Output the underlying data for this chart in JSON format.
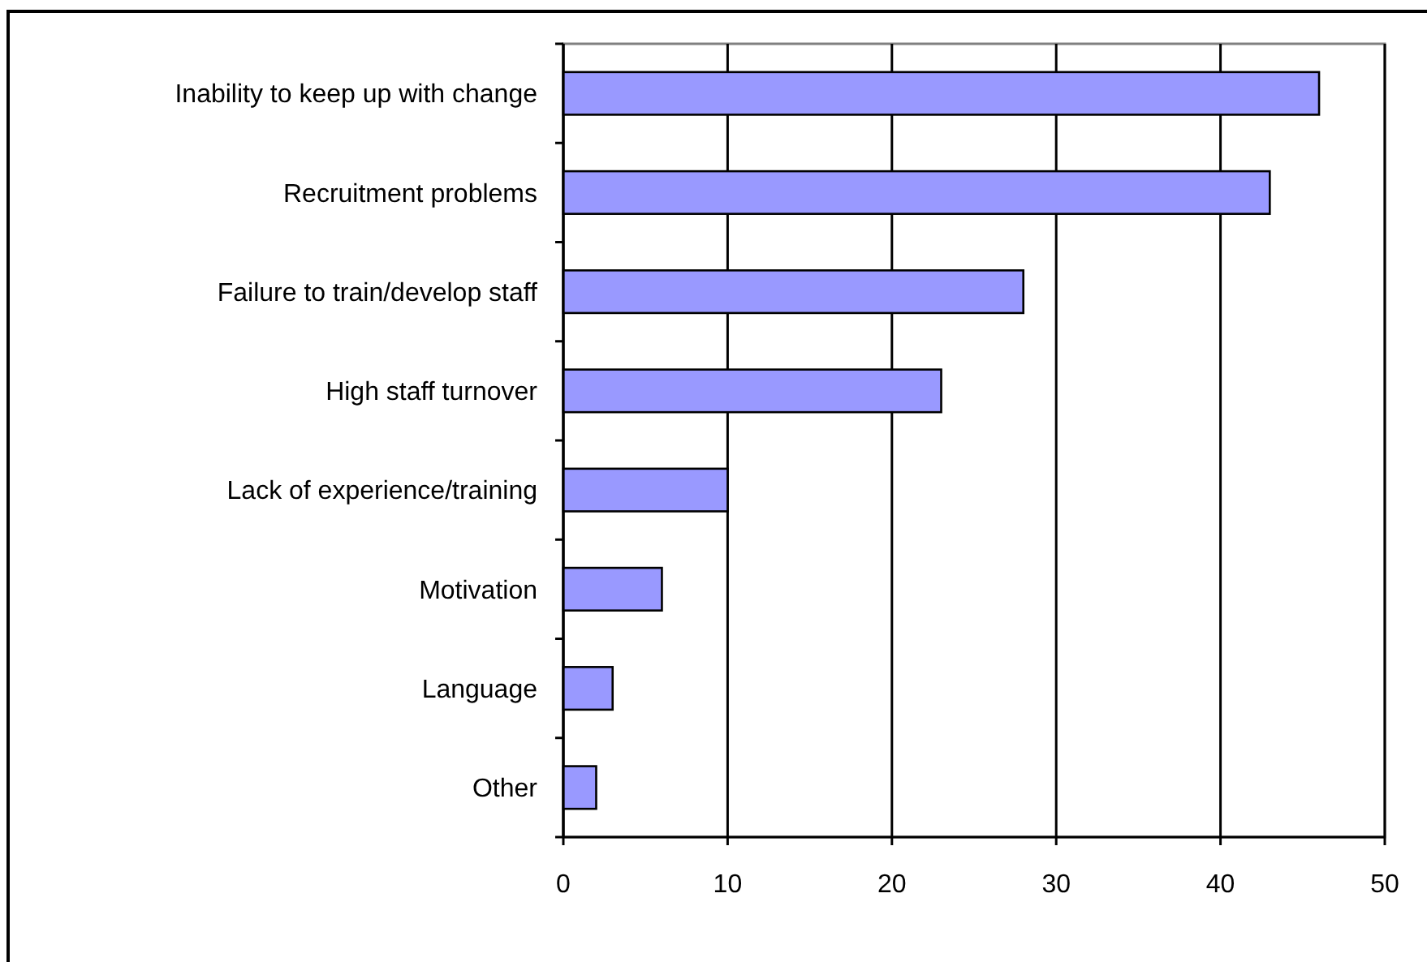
{
  "chart_data": {
    "type": "bar",
    "orientation": "horizontal",
    "categories": [
      "Inability to keep up with change",
      "Recruitment problems",
      "Failure to train/develop staff",
      "High staff turnover",
      "Lack of experience/training",
      "Motivation",
      "Language",
      "Other"
    ],
    "values": [
      46,
      43,
      28,
      23,
      10,
      6,
      3,
      2
    ],
    "color": "#9999ff",
    "xlim": [
      0,
      50
    ],
    "xticks": [
      0,
      10,
      20,
      30,
      40,
      50
    ],
    "grid": "x"
  }
}
